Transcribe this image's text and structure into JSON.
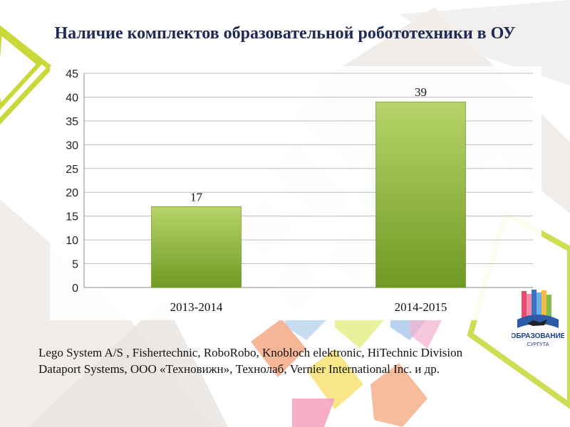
{
  "title": "Наличие комплектов образовательной робототехники в ОУ",
  "caption": "Lego System A/S , Fishertechnic, RoboRobo, Knobloch elektronic, HiTechnic Division Dataport Systems, ООО «Техновижн», Технолаб, Vernier International Inc. и др.",
  "logo": {
    "line1": "ОБРАЗОВАНИЕ",
    "line2": "СУРГУТА"
  },
  "colors": {
    "bar_top": "#b7d46a",
    "bar_bottom": "#6f9a22",
    "title": "#1f2a56",
    "accent_frame": "#c9d93a"
  },
  "chart_data": {
    "type": "bar",
    "title": "",
    "xlabel": "",
    "ylabel": "",
    "categories": [
      "2013-2014",
      "2014-2015"
    ],
    "values": [
      17,
      39
    ],
    "data_labels": [
      "17",
      "39"
    ],
    "ylim": [
      0,
      45
    ],
    "yticks": [
      0,
      5,
      10,
      15,
      20,
      25,
      30,
      35,
      40,
      45
    ],
    "grid": true,
    "legend": "none"
  }
}
